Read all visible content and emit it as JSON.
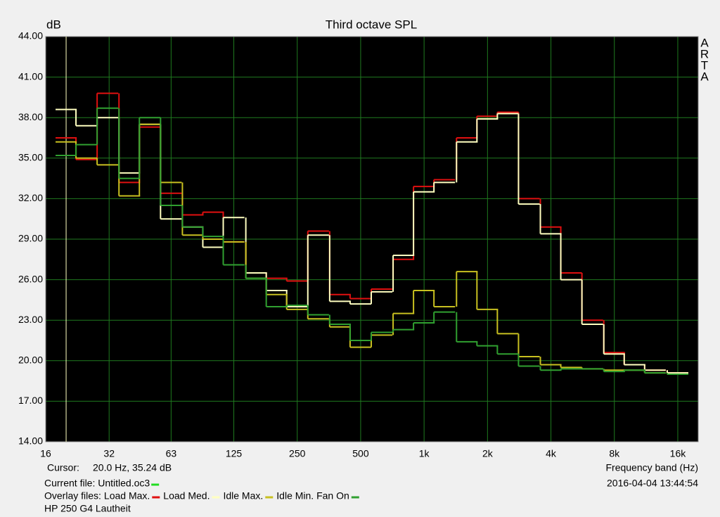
{
  "chart_data": {
    "type": "step",
    "title": "Third octave SPL",
    "y_label": "dB",
    "x_label": "Frequency band (Hz)",
    "watermark": "ARTA",
    "cursor_label": "Cursor:",
    "cursor_text": "20.0 Hz, 35.24 dB",
    "current_file_label": "Current file: Untitled.oc3",
    "current_file_color": "#22dd22",
    "overlay_label": "Overlay files:",
    "timestamp": "2016-04-04  13:44:54",
    "footer": "HP 250 G4 Lautheit",
    "log_x": true,
    "grid": true,
    "x": [
      20,
      25,
      31.5,
      40,
      50,
      63,
      80,
      100,
      125,
      160,
      200,
      250,
      315,
      400,
      500,
      630,
      800,
      1000,
      1250,
      1600,
      2000,
      2500,
      3150,
      4000,
      5000,
      6300,
      8000,
      10000,
      12500,
      16000
    ],
    "xlim": [
      16,
      20000
    ],
    "xticks": [
      16,
      32,
      63,
      125,
      250,
      500,
      {
        "value": 1000,
        "label": "1k"
      },
      {
        "value": 2000,
        "label": "2k"
      },
      {
        "value": 4000,
        "label": "4k"
      },
      {
        "value": 8000,
        "label": "8k"
      },
      {
        "value": 16000,
        "label": "16k"
      }
    ],
    "ylim": [
      14,
      44
    ],
    "yticks": [
      {
        "value": 14,
        "label": "14.00"
      },
      {
        "value": 17,
        "label": "17.00"
      },
      {
        "value": 20,
        "label": "20.00"
      },
      {
        "value": 23,
        "label": "23.00"
      },
      {
        "value": 26,
        "label": "26.00"
      },
      {
        "value": 29,
        "label": "29.00"
      },
      {
        "value": 32,
        "label": "32.00"
      },
      {
        "value": 35,
        "label": "35.00"
      },
      {
        "value": 38,
        "label": "38.00"
      },
      {
        "value": 41,
        "label": "41.00"
      },
      {
        "value": 44,
        "label": "44.00"
      }
    ],
    "series": [
      {
        "name": "Load Max.",
        "color": "#e01010",
        "values": [
          36.5,
          34.9,
          39.8,
          33.2,
          37.3,
          32.4,
          30.8,
          31.0,
          28.8,
          26.5,
          26.1,
          25.9,
          29.6,
          24.9,
          24.6,
          25.3,
          27.5,
          32.9,
          33.4,
          36.5,
          38.1,
          38.4,
          32.0,
          29.9,
          26.5,
          23.0,
          20.6,
          19.7,
          19.3,
          19.1
        ]
      },
      {
        "name": "Load Med.",
        "color": "#ffffc0",
        "values": [
          38.6,
          37.4,
          38.0,
          33.9,
          37.5,
          30.5,
          29.9,
          28.4,
          30.6,
          26.5,
          25.2,
          24.0,
          29.3,
          24.4,
          24.2,
          25.1,
          27.8,
          32.5,
          33.2,
          36.2,
          37.9,
          38.3,
          31.6,
          29.4,
          26.0,
          22.7,
          20.5,
          19.7,
          19.3,
          19.1
        ]
      },
      {
        "name": "Idle Max.",
        "color": "#c8c020",
        "values": [
          36.2,
          35.0,
          34.5,
          32.2,
          37.5,
          33.2,
          29.3,
          29.0,
          28.8,
          26.1,
          24.9,
          23.8,
          23.1,
          22.5,
          21.0,
          21.9,
          23.5,
          25.2,
          24.0,
          26.6,
          23.8,
          22.0,
          20.3,
          19.7,
          19.5,
          19.4,
          19.3,
          19.3,
          19.1,
          19.0
        ]
      },
      {
        "name": "Idle Min. Fan On",
        "color": "#30a030",
        "values": [
          35.2,
          36.0,
          38.7,
          33.5,
          38.0,
          31.5,
          29.9,
          29.2,
          27.1,
          26.1,
          24.0,
          24.1,
          23.4,
          22.7,
          21.5,
          22.1,
          22.3,
          22.8,
          23.6,
          21.4,
          21.1,
          20.5,
          19.6,
          19.3,
          19.4,
          19.4,
          19.2,
          19.3,
          19.1,
          19.0
        ]
      }
    ]
  }
}
